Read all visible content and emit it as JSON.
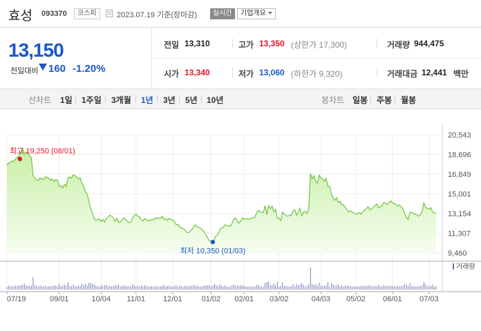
{
  "header": {
    "name": "효성",
    "code": "093370",
    "market": "코스피",
    "date_label": "2023.07.19 기준(장마감)",
    "realtime_label": "실시간",
    "overview_label": "기업개요"
  },
  "quote": {
    "price": "13,150",
    "change_label": "전일대비",
    "change_amount": "160",
    "change_percent": "-1.20%",
    "prev_close_label": "전일",
    "prev_close": "13,310",
    "high_label": "고가",
    "high": "13,350",
    "upper_limit": "(상한가 17,300)",
    "volume_label": "거래량",
    "volume": "944,475",
    "open_label": "시가",
    "open": "13,340",
    "low_label": "저가",
    "low": "13,060",
    "lower_limit": "(하한가 9,320)",
    "amount_label": "거래대금",
    "amount": "12,441",
    "amount_unit": "백만"
  },
  "periods": {
    "line_label": "선차트",
    "line_options": [
      "1일",
      "1주일",
      "3개월",
      "1년",
      "3년",
      "5년",
      "10년"
    ],
    "active": "1년",
    "candle_label": "봉차트",
    "candle_options": [
      "일봉",
      "주봉",
      "월봉"
    ]
  },
  "colors": {
    "up": "#e0142c",
    "down": "#1d57c5",
    "line": "#6cc43e",
    "fill": "#e9f8d8",
    "volume": "#6a71b4"
  },
  "chart_data": {
    "type": "area",
    "y_ticks": [
      "20,543",
      "18,696",
      "16,849",
      "15,001",
      "13,154",
      "11,307",
      "9,460"
    ],
    "ylim": [
      9460,
      20543
    ],
    "x_ticks": [
      "07/19",
      "09/01",
      "10/04",
      "11/01",
      "12/01",
      "01/02",
      "02/01",
      "03/02",
      "04/03",
      "05/02",
      "06/01",
      "07/03"
    ],
    "x_tick_index": [
      0,
      30,
      54,
      74,
      95,
      117,
      136,
      156,
      180,
      200,
      221,
      242
    ],
    "volume_legend": "거래량",
    "annotations": {
      "high": {
        "label": "최고 19,250 (08/01)",
        "index": 9,
        "value": 19250
      },
      "low": {
        "label": "최저 10,350 (01/03)",
        "index": 118,
        "value": 10350
      }
    },
    "prices": [
      17700,
      17900,
      17950,
      18100,
      18050,
      18300,
      18450,
      18650,
      18900,
      19250,
      18700,
      18950,
      18800,
      18600,
      18400,
      16700,
      16450,
      16300,
      16250,
      16500,
      16400,
      16350,
      16600,
      16550,
      16450,
      16300,
      16400,
      16150,
      16350,
      16250,
      15700,
      15800,
      15550,
      15900,
      15700,
      16500,
      16600,
      16450,
      16800,
      16700,
      16600,
      16400,
      16500,
      16000,
      15750,
      15200,
      15000,
      14300,
      13600,
      13150,
      12700,
      12500,
      12600,
      12650,
      12400,
      12600,
      12350,
      12700,
      12800,
      13000,
      12900,
      12750,
      12450,
      12700,
      12300,
      12350,
      12550,
      12750,
      12550,
      12450,
      12300,
      12350,
      12750,
      13000,
      13100,
      12900,
      12850,
      12550,
      12450,
      12700,
      12500,
      12550,
      12450,
      12600,
      12550,
      12750,
      12700,
      12750,
      12700,
      12900,
      12600,
      12700,
      12500,
      12700,
      12600,
      12550,
      12400,
      12100,
      12150,
      11900,
      11800,
      11750,
      11600,
      11400,
      11350,
      11500,
      11650,
      11900,
      12100,
      11900,
      11850,
      11750,
      11650,
      11450,
      11150,
      10900,
      10600,
      10550,
      10350,
      10800,
      11100,
      11200,
      11600,
      11800,
      11850,
      12100,
      12000,
      12000,
      11950,
      12200,
      12600,
      12750,
      12450,
      12250,
      12450,
      12750,
      12600,
      12650,
      12700,
      12600,
      12700,
      12750,
      12800,
      13150,
      13450,
      13350,
      13250,
      13250,
      13900,
      13050,
      13900,
      13600,
      13850,
      13300,
      13550,
      12700,
      12700,
      12500,
      13300,
      13100,
      12950,
      12900,
      13000,
      12950,
      13400,
      13500,
      13000,
      13300,
      13650,
      12950,
      13300,
      13350,
      13150,
      13600,
      16900,
      16400,
      16700,
      16200,
      16000,
      16750,
      16500,
      16400,
      16200,
      16450,
      15700,
      15700,
      15000,
      14600,
      14400,
      14650,
      14200,
      14300,
      14000,
      13950,
      13700,
      13500,
      13300,
      13400,
      13300,
      13200,
      13100,
      13150,
      13250,
      13100,
      13300,
      13450,
      13600,
      13800,
      13500,
      13600,
      13700,
      13900,
      14050,
      13700,
      13800,
      13900,
      14200,
      14100,
      14000,
      14200,
      14350,
      14150,
      14100,
      14000,
      13850,
      13950,
      13800,
      13600,
      13150,
      12800,
      12600,
      13250,
      13300,
      13150,
      13100,
      13050,
      12900,
      13050,
      13300,
      14150,
      13700,
      13650,
      13550,
      13700,
      13300,
      13250,
      13150
    ]
  }
}
